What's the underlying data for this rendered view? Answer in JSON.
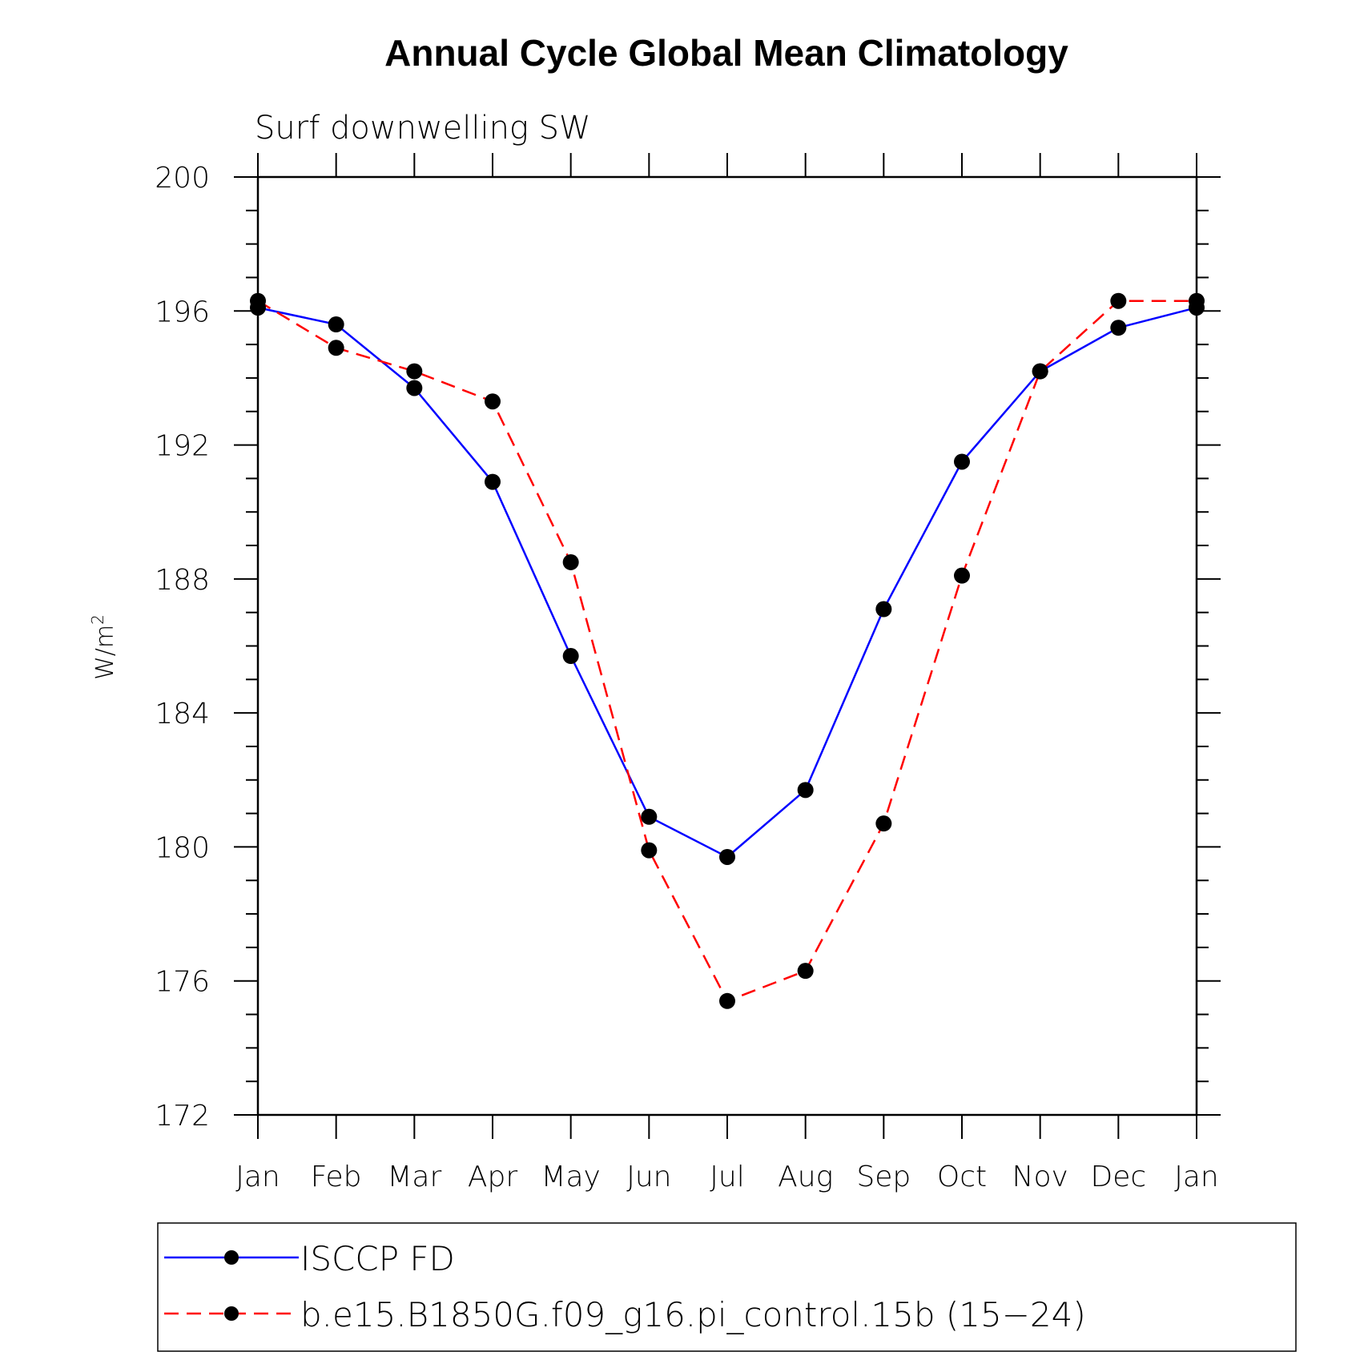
{
  "chart_data": {
    "type": "line",
    "title": "Annual Cycle Global Mean Climatology",
    "subtitle": "Surf downwelling SW",
    "ylabel": "W/m",
    "ylabel_superscript": "2",
    "xlabel": "",
    "categories": [
      "Jan",
      "Feb",
      "Mar",
      "Apr",
      "May",
      "Jun",
      "Jul",
      "Aug",
      "Sep",
      "Oct",
      "Nov",
      "Dec",
      "Jan"
    ],
    "ylim": [
      172,
      200
    ],
    "yticks": [
      172,
      176,
      180,
      184,
      188,
      192,
      196,
      200
    ],
    "ytick_labels": [
      "172",
      "176",
      "180",
      "184",
      "188",
      "192",
      "196",
      "200"
    ],
    "series": [
      {
        "name": "ISCCP FD",
        "color": "#0000ff",
        "line_style": "solid",
        "marker": "filled-circle",
        "values": [
          196.1,
          195.6,
          193.7,
          190.9,
          185.7,
          180.9,
          179.7,
          181.7,
          187.1,
          191.5,
          194.2,
          195.5,
          196.1
        ]
      },
      {
        "name": "b.e15.B1850G.f09_g16.pi_control.15b (15−24)",
        "color": "#ff0000",
        "line_style": "dashed",
        "marker": "filled-circle",
        "values": [
          196.3,
          194.9,
          194.2,
          193.3,
          188.5,
          179.9,
          175.4,
          176.3,
          180.7,
          188.1,
          194.2,
          196.3,
          196.3
        ]
      }
    ],
    "grid": false,
    "legend_position": "bottom"
  }
}
